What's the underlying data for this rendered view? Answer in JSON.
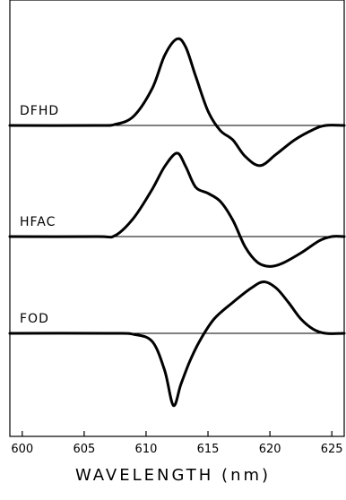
{
  "chart_data": {
    "type": "line",
    "xlabel": "WAVELENGTH (nm)",
    "xlim": [
      599,
      626
    ],
    "x_ticks": [
      600,
      605,
      610,
      615,
      620,
      625
    ],
    "ylabel": "",
    "grid": false,
    "legend": "none",
    "series": [
      {
        "name": "DFHD",
        "x": [
          599,
          606,
          607.5,
          609,
          610.5,
          611.5,
          612.5,
          613.2,
          614,
          615,
          616,
          617,
          618,
          619.2,
          620.5,
          622,
          623.5,
          624.5,
          626
        ],
        "y": [
          0,
          0,
          0.05,
          0.45,
          1.8,
          3.4,
          4.2,
          3.8,
          2.4,
          0.7,
          -0.25,
          -0.7,
          -1.5,
          -1.95,
          -1.4,
          -0.7,
          -0.2,
          0,
          0
        ]
      },
      {
        "name": "HFAC",
        "x": [
          599,
          606,
          607.5,
          609,
          610.5,
          611.5,
          612.5,
          613.2,
          614,
          615,
          616,
          617,
          618,
          619,
          620,
          621,
          622.5,
          624,
          625,
          626
        ],
        "y": [
          0,
          0,
          0.05,
          0.9,
          2.3,
          3.4,
          4.05,
          3.4,
          2.4,
          2.1,
          1.7,
          0.8,
          -0.5,
          -1.25,
          -1.45,
          -1.3,
          -0.8,
          -0.2,
          0,
          0
        ]
      },
      {
        "name": "FOD",
        "x": [
          599,
          607,
          609,
          610.5,
          611.5,
          612.2,
          612.8,
          613.5,
          614.3,
          615.5,
          617,
          618.5,
          619.5,
          620.5,
          621.5,
          622.5,
          623.5,
          624.5,
          626
        ],
        "y": [
          0,
          0,
          -0.05,
          -0.4,
          -1.8,
          -3.5,
          -2.5,
          -1.4,
          -0.4,
          0.7,
          1.5,
          2.2,
          2.5,
          2.2,
          1.5,
          0.7,
          0.2,
          0,
          0
        ]
      }
    ]
  }
}
